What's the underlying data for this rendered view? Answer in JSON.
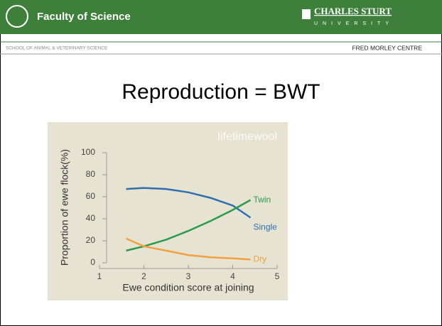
{
  "header": {
    "faculty": "Faculty of Science",
    "university": "CHARLES STURT",
    "university_sub": "UNIVERSITY",
    "school": "SCHOOL OF ANIMAL & VETERINARY SCIENCE",
    "centre": "FRED MORLEY CENTRE"
  },
  "slide_title": "Reproduction = BWT",
  "chart_data": {
    "type": "line",
    "watermark": "lifetimewool",
    "xlabel": "Ewe condition score at joining",
    "ylabel": "Proportion of ewe flock(%)",
    "x": [
      1.6,
      2,
      2.5,
      3,
      3.5,
      4,
      4.4
    ],
    "series": [
      {
        "name": "Single",
        "color": "#2f6fae",
        "values": [
          67,
          68,
          67,
          64,
          59,
          52,
          41
        ]
      },
      {
        "name": "Twin",
        "color": "#2b9a4c",
        "values": [
          11,
          15,
          21,
          29,
          38,
          48,
          57
        ]
      },
      {
        "name": "Dry",
        "color": "#f0a040",
        "values": [
          22,
          15,
          11,
          7,
          5,
          4,
          3
        ]
      }
    ],
    "xlim": [
      1,
      5
    ],
    "ylim": [
      0,
      100
    ],
    "xticks": [
      1,
      2,
      3,
      4,
      5
    ],
    "yticks": [
      0,
      20,
      40,
      60,
      80,
      100
    ]
  }
}
